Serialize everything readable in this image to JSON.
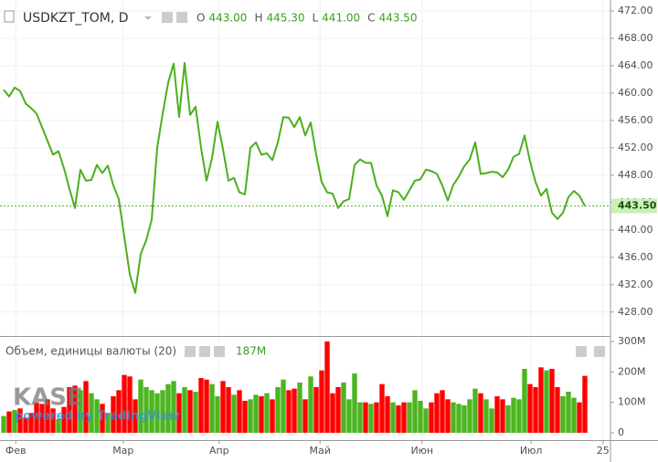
{
  "header": {
    "symbol": "USDKZT_TOM, D",
    "ohlc": [
      {
        "key": "O",
        "value": "443.00"
      },
      {
        "key": "H",
        "value": "445.30"
      },
      {
        "key": "L",
        "value": "441.00"
      },
      {
        "key": "C",
        "value": "443.50"
      }
    ]
  },
  "branding": {
    "logo": "KASE",
    "powered": "powered by TradingView"
  },
  "chart_data": [
    {
      "type": "line",
      "color": "#4caf1f",
      "grid": true,
      "values": [
        460.5,
        459.5,
        460.8,
        460.3,
        458.5,
        457.8,
        457,
        455,
        453,
        451,
        451.5,
        449,
        446,
        443.2,
        448.8,
        447.2,
        447.3,
        449.5,
        448.3,
        449.4,
        446.5,
        444.5,
        439,
        433.5,
        430.8,
        436.5,
        438.5,
        441.5,
        452,
        457,
        461.5,
        464.3,
        456.5,
        464.4,
        456.8,
        458,
        452,
        447.2,
        450.5,
        455.8,
        451.8,
        447.2,
        447.6,
        445.5,
        445.2,
        452,
        452.8,
        451,
        451.2,
        450.2,
        452.8,
        456.5,
        456.4,
        455,
        456.5,
        453.8,
        455.7,
        451,
        447,
        445.5,
        445.3,
        443.2,
        444.2,
        444.5,
        449.5,
        450.3,
        449.8,
        449.8,
        446.5,
        445,
        442,
        445.8,
        445.5,
        444.4,
        445.8,
        447.2,
        447.4,
        448.8,
        448.6,
        448.2,
        446.5,
        444.3,
        446.6,
        447.8,
        449.3,
        450.3,
        452.8,
        448.2,
        448.3,
        448.5,
        448.4,
        447.7,
        448.8,
        450.7,
        451.1,
        453.8,
        450,
        447,
        445,
        446,
        442.5,
        441.6,
        442.5,
        444.8,
        445.7,
        445,
        443.5
      ],
      "xlim": [
        -0.67,
        110.67
      ],
      "xticks": [
        {
          "value": 2.2,
          "label": "Фев"
        },
        {
          "value": 21.8,
          "label": "Мар"
        },
        {
          "value": 39.3,
          "label": "Апр"
        },
        {
          "value": 57.7,
          "label": "Май"
        },
        {
          "value": 76.3,
          "label": "Июн"
        },
        {
          "value": 96.2,
          "label": "Июл"
        },
        {
          "value": 109.3,
          "label": "25"
        }
      ],
      "ylim": [
        424.5,
        473.6
      ],
      "yticks": [
        {
          "value": 428,
          "label": "428.00"
        },
        {
          "value": 432,
          "label": "432.00"
        },
        {
          "value": 436,
          "label": "436.00"
        },
        {
          "value": 440,
          "label": "440.00"
        },
        {
          "value": 444,
          "label": "444.00"
        },
        {
          "value": 448,
          "label": "448.00"
        },
        {
          "value": 452,
          "label": "452.00"
        },
        {
          "value": 456,
          "label": "456.00"
        },
        {
          "value": 460,
          "label": "460.00"
        },
        {
          "value": 464,
          "label": "464.00"
        },
        {
          "value": 468,
          "label": "468.00"
        },
        {
          "value": 472,
          "label": "472.00"
        }
      ],
      "last_price": {
        "value": 443.5,
        "label": "443.50"
      }
    },
    {
      "type": "bar",
      "title": "Объем, единицы валюты (20)",
      "up_color": "#4cb520",
      "down_color": "#ff0000",
      "values": [
        55,
        70,
        75,
        80,
        50,
        65,
        100,
        95,
        110,
        80,
        45,
        85,
        150,
        155,
        140,
        170,
        130,
        110,
        95,
        65,
        120,
        140,
        190,
        185,
        110,
        175,
        150,
        140,
        130,
        140,
        160,
        170,
        130,
        150,
        140,
        135,
        180,
        175,
        160,
        120,
        170,
        150,
        125,
        140,
        105,
        110,
        125,
        120,
        130,
        110,
        150,
        175,
        140,
        145,
        165,
        110,
        185,
        150,
        205,
        300,
        130,
        150,
        165,
        110,
        195,
        100,
        100,
        95,
        100,
        160,
        120,
        100,
        90,
        100,
        100,
        140,
        105,
        80,
        100,
        130,
        140,
        110,
        100,
        95,
        90,
        110,
        145,
        130,
        110,
        80,
        120,
        110,
        90,
        115,
        110,
        210,
        160,
        150,
        215,
        205,
        210,
        150,
        120,
        135,
        115,
        100,
        187
      ],
      "ylim": [
        -24,
        312
      ],
      "yticks": [
        0,
        {
          "value": 100,
          "label": "100M"
        },
        {
          "value": 200,
          "label": "200M"
        },
        {
          "value": 300,
          "label": "300M"
        }
      ],
      "current_label": "187M"
    }
  ]
}
